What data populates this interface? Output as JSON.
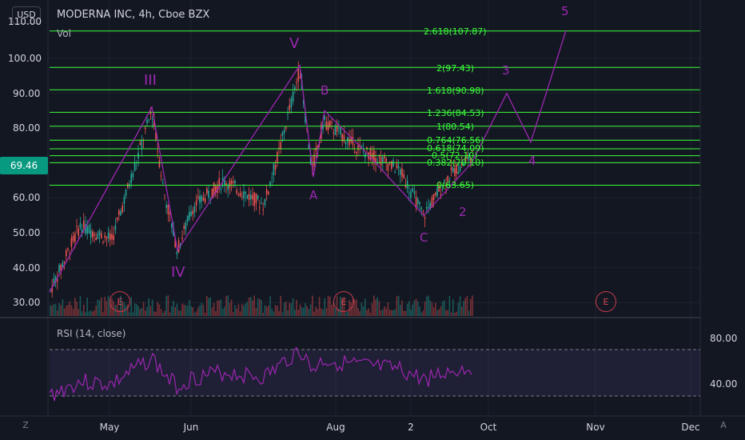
{
  "header": {
    "currency": "USD",
    "title": "MODERNA INC, 4h, Cboe BZX",
    "volume_label": "Vol",
    "rsi_label": "RSI (14, close)"
  },
  "price": {
    "last": "69.46",
    "top_tick_partial": "110.00"
  },
  "y_axis": [
    "100.00",
    "90.00",
    "80.00",
    "60.00",
    "50.00",
    "40.00",
    "30.00"
  ],
  "rsi_axis": [
    "80.00",
    "40.00"
  ],
  "x_axis": [
    "May",
    "Jun",
    "Aug",
    "2",
    "Oct",
    "Nov",
    "Dec"
  ],
  "fib_levels": [
    "2.618(107.87)",
    "2(97.43)",
    "1.618(90.98)",
    "1.236(84.53)",
    "1(80.54)",
    "0.764(76.56)",
    "0.618(74.09)",
    "0.5(72.10)",
    "0.382(70.10)",
    "0(63.65)"
  ],
  "wave_labels": [
    "III",
    "IV",
    "V",
    "A",
    "B",
    "C",
    "2",
    "3",
    "4",
    "5"
  ],
  "earnings_marker": "E",
  "corner": {
    "left": "Z",
    "right": "A"
  },
  "colors": {
    "background": "#131722",
    "fib_line": "#3cff3c",
    "wave": "#9c27b0",
    "up": "#26a69a",
    "down": "#ef5350",
    "price_tag": "#089981",
    "rsi_line": "#9c27b0"
  }
}
